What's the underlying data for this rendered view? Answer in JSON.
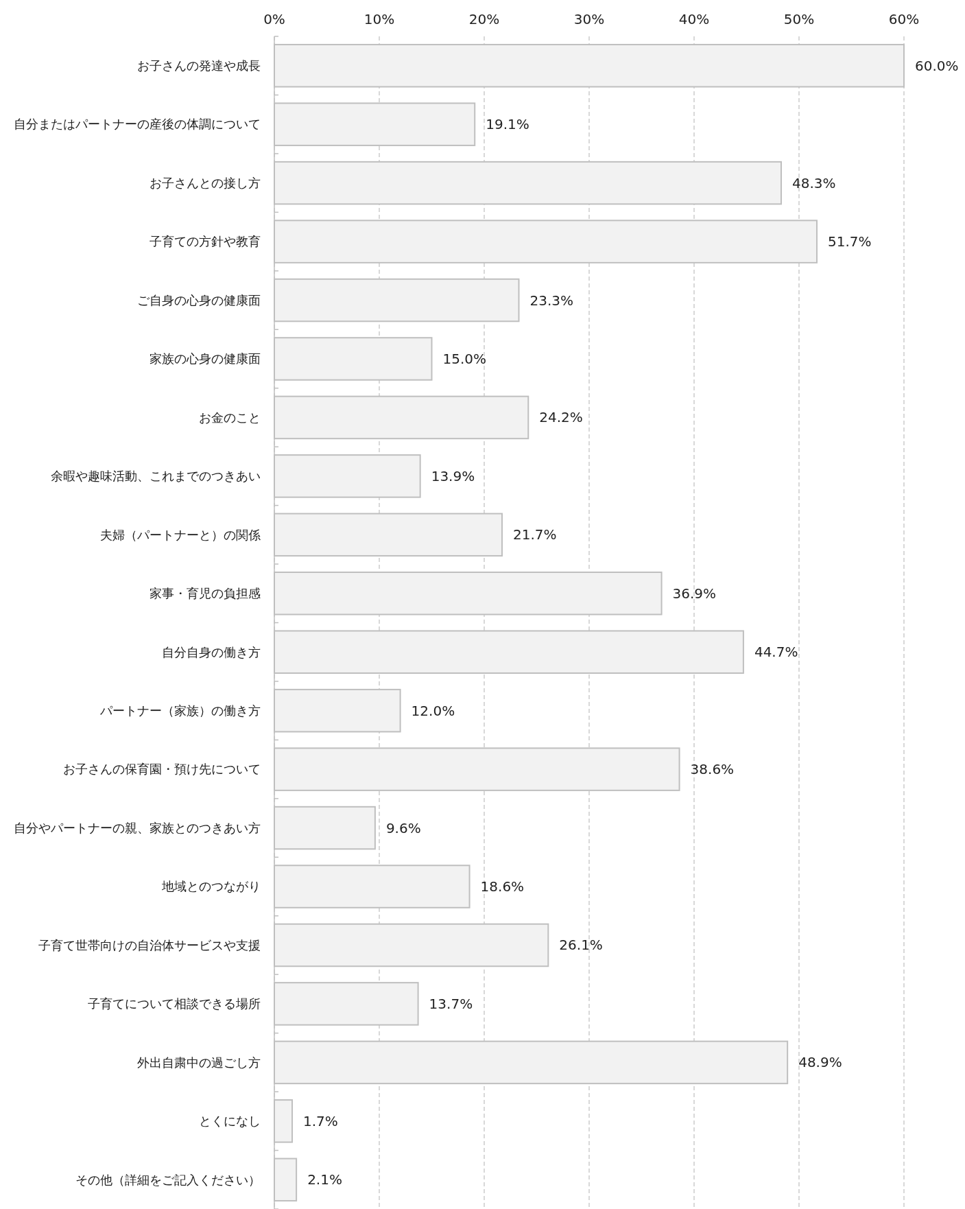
{
  "chart_data": {
    "type": "bar",
    "orientation": "horizontal",
    "categories": [
      "お子さんの発達や成長",
      "自分またはパートナーの産後の体調について",
      "お子さんとの接し方",
      "子育ての方針や教育",
      "ご自身の心身の健康面",
      "家族の心身の健康面",
      "お金のこと",
      "余暇や趣味活動、これまでのつきあい",
      "夫婦（パートナーと）の関係",
      "家事・育児の負担感",
      "自分自身の働き方",
      "パートナー（家族）の働き方",
      "お子さんの保育園・預け先について",
      "自分やパートナーの親、家族とのつきあい方",
      "地域とのつながり",
      "子育て世帯向けの自治体サービスや支援",
      "子育てについて相談できる場所",
      "外出自粛中の過ごし方",
      "とくになし",
      "その他（詳細をご記入ください）"
    ],
    "values": [
      60.0,
      19.1,
      48.3,
      51.7,
      23.3,
      15.0,
      24.2,
      13.9,
      21.7,
      36.9,
      44.7,
      12.0,
      38.6,
      9.6,
      18.6,
      26.1,
      13.7,
      48.9,
      1.7,
      2.1
    ],
    "value_labels": [
      "60.0%",
      "19.1%",
      "48.3%",
      "51.7%",
      "23.3%",
      "15.0%",
      "24.2%",
      "13.9%",
      "21.7%",
      "36.9%",
      "44.7%",
      "12.0%",
      "38.6%",
      "9.6%",
      "18.6%",
      "26.1%",
      "13.7%",
      "48.9%",
      "1.7%",
      "2.1%"
    ],
    "color": "#f2f2f2",
    "xlim": [
      0,
      60
    ],
    "xticks": [
      {
        "value": 0,
        "label": "0%"
      },
      {
        "value": 10,
        "label": "10%"
      },
      {
        "value": 20,
        "label": "20%"
      },
      {
        "value": 30,
        "label": "30%"
      },
      {
        "value": 40,
        "label": "40%"
      },
      {
        "value": 50,
        "label": "50%"
      },
      {
        "value": 60,
        "label": "60%"
      }
    ],
    "grid": "x"
  }
}
